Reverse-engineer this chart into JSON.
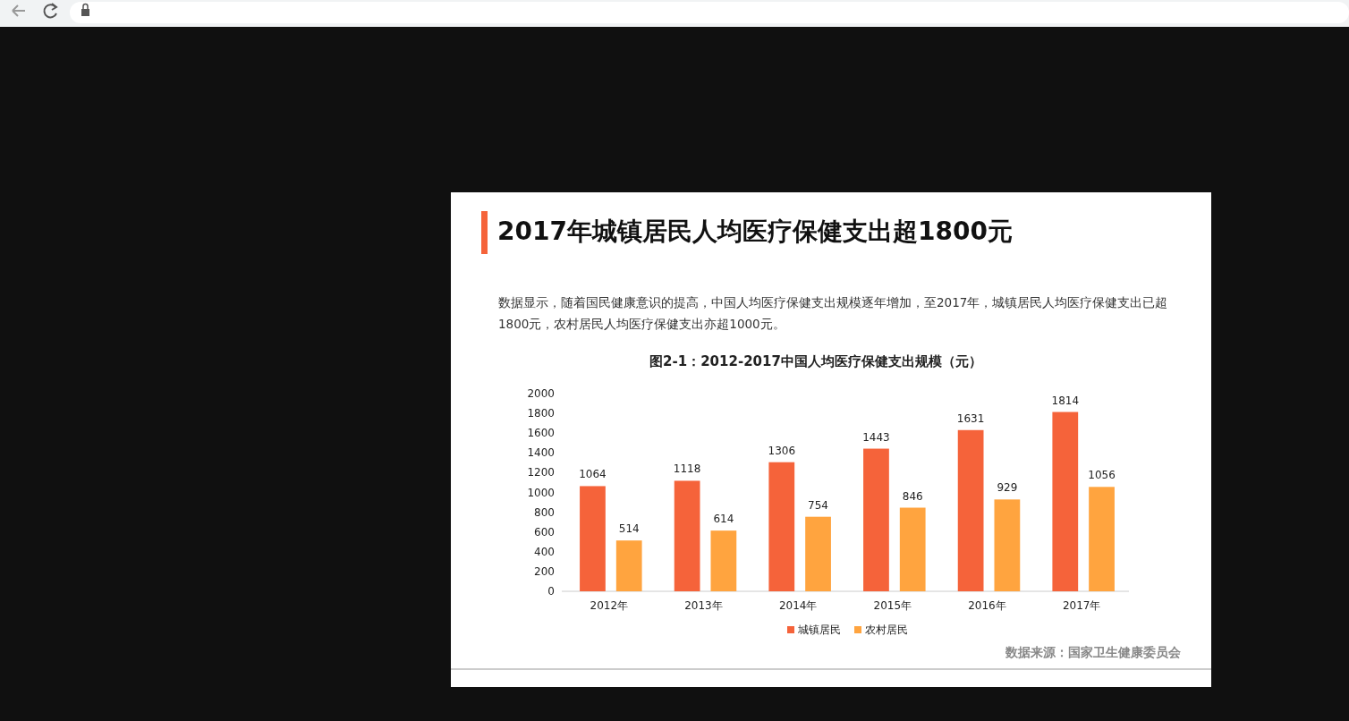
{
  "chart_data": {
    "type": "bar",
    "title": "2017年城镇居民人均医疗保健支出超1800元",
    "subtitle": "数据显示，随着国民健康意识的提高，中国人均医疗保健支出规模逐年增加，至2017年，城镇居民人均医疗保健支出已超1800元，农村居民人均医疗保健支出亦超1000元。",
    "annotations": [
      "图2-1：2012-2017中国人均医疗保健支出规模（元）",
      "数据来源：国家卫生健康委员会"
    ],
    "categories": [
      "2012年",
      "2013年",
      "2014年",
      "2015年",
      "2016年",
      "2017年"
    ],
    "series": [
      {
        "name": "城镇居民",
        "color": "#f5633a",
        "values": [
          1064,
          1118,
          1306,
          1443,
          1631,
          1814
        ]
      },
      {
        "name": "农村居民",
        "color": "#ffa43f",
        "values": [
          514,
          614,
          754,
          846,
          929,
          1056
        ]
      }
    ],
    "ylim": [
      0,
      2000
    ],
    "yticks": [
      0,
      200,
      400,
      600,
      800,
      1000,
      1200,
      1400,
      1600,
      1800,
      2000
    ],
    "data_labels": true,
    "legend": "bottom",
    "grid": false
  }
}
